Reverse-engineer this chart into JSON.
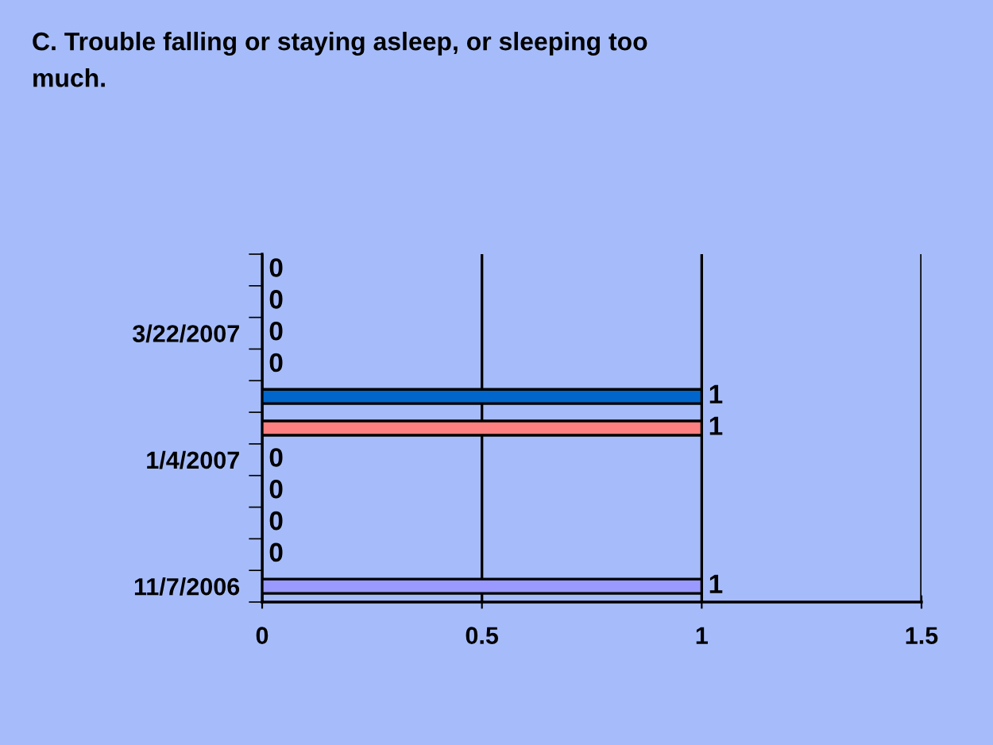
{
  "chart_data": {
    "type": "bar",
    "orientation": "horizontal",
    "title": "C. Trouble falling or staying asleep, or sleeping too much.",
    "categories": [
      null,
      null,
      "3/22/2007",
      null,
      null,
      null,
      "1/4/2007",
      null,
      null,
      null,
      "11/7/2006"
    ],
    "values": [
      0,
      0,
      0,
      0,
      1,
      1,
      0,
      0,
      0,
      0,
      1
    ],
    "colors": [
      "#9999ff",
      "#9999ff",
      "#9999ff",
      "#9999ff",
      "#0066cc",
      "#ff8080",
      "#9999ff",
      "#9999ff",
      "#9999ff",
      "#9999ff",
      "#9999ff"
    ],
    "xlim": [
      0,
      1.5
    ],
    "xticks": [
      0,
      0.5,
      1,
      1.5
    ],
    "grid": "x",
    "data_labels": true
  }
}
